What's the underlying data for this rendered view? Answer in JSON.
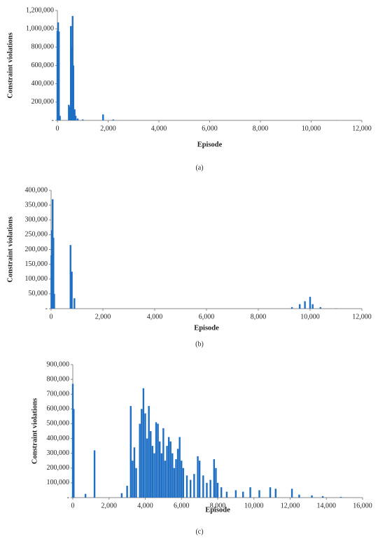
{
  "chart_data": [
    {
      "type": "bar",
      "panel_label": "(a)",
      "xlabel": "Episode",
      "ylabel": "Constraint violations",
      "color": "#1f6fc5",
      "x": [
        0,
        30,
        60,
        100,
        450,
        500,
        530,
        570,
        600,
        630,
        680,
        720,
        800,
        1000,
        1800,
        2200,
        11000
      ],
      "values": [
        980000,
        1070000,
        970000,
        50000,
        170000,
        150000,
        1030000,
        800000,
        1140000,
        600000,
        120000,
        50000,
        20000,
        10000,
        65000,
        10000,
        2000
      ],
      "xlim": [
        0,
        12000
      ],
      "ylim": [
        0,
        1200000
      ],
      "xticks": [
        0,
        {
          "value": 2000,
          "label": "2,000"
        },
        {
          "value": 4000,
          "label": "4,000"
        },
        {
          "value": 6000,
          "label": "6,000"
        },
        {
          "value": 8000,
          "label": "8,000"
        },
        {
          "value": 10000,
          "label": "10,000"
        },
        {
          "value": 12000,
          "label": "12,000"
        }
      ],
      "yticks": [
        {
          "value": 0,
          "label": "-"
        },
        {
          "value": 200000,
          "label": "200,000"
        },
        {
          "value": 400000,
          "label": "400,000"
        },
        {
          "value": 600000,
          "label": "600,000"
        },
        {
          "value": 800000,
          "label": "800,000"
        },
        {
          "value": 1000000,
          "label": "1,000,000"
        },
        {
          "value": 1200000,
          "label": "1,200,000"
        }
      ]
    },
    {
      "type": "bar",
      "panel_label": "(b)",
      "xlabel": "Episode",
      "ylabel": "Constraint violations",
      "color": "#1f6fc5",
      "x": [
        10,
        30,
        60,
        90,
        120,
        750,
        800,
        900,
        9300,
        9600,
        9800,
        10000,
        10100,
        10400,
        11000
      ],
      "values": [
        180000,
        265000,
        370000,
        240000,
        50000,
        215000,
        125000,
        35000,
        5000,
        15000,
        25000,
        40000,
        15000,
        5000,
        1000
      ],
      "xlim": [
        0,
        12000
      ],
      "ylim": [
        0,
        400000
      ],
      "xticks": [
        0,
        {
          "value": 2000,
          "label": "2,000"
        },
        {
          "value": 4000,
          "label": "4,000"
        },
        {
          "value": 6000,
          "label": "6,000"
        },
        {
          "value": 8000,
          "label": "8,000"
        },
        {
          "value": 10000,
          "label": "10,000"
        },
        {
          "value": 12000,
          "label": "12,000"
        }
      ],
      "yticks": [
        {
          "value": 0,
          "label": "-"
        },
        {
          "value": 50000,
          "label": "50,000"
        },
        {
          "value": 100000,
          "label": "100,000"
        },
        {
          "value": 150000,
          "label": "150,000"
        },
        {
          "value": 200000,
          "label": "200,000"
        },
        {
          "value": 250000,
          "label": "250,000"
        },
        {
          "value": 300000,
          "label": "300,000"
        },
        {
          "value": 350000,
          "label": "350,000"
        },
        {
          "value": 400000,
          "label": "400,000"
        }
      ]
    },
    {
      "type": "bar",
      "panel_label": "(c)",
      "xlabel": "Episode",
      "ylabel": "Constraint violations",
      "color": "#1f6fc5",
      "x": [
        0,
        50,
        700,
        1200,
        2700,
        3000,
        3200,
        3300,
        3400,
        3500,
        3700,
        3800,
        3900,
        4000,
        4100,
        4200,
        4300,
        4400,
        4500,
        4600,
        4700,
        4800,
        4900,
        5000,
        5100,
        5200,
        5300,
        5400,
        5500,
        5600,
        5700,
        5800,
        5900,
        6000,
        6100,
        6300,
        6500,
        6700,
        6900,
        7000,
        7200,
        7400,
        7600,
        7800,
        7900,
        8000,
        8200,
        8500,
        9000,
        9400,
        9800,
        10300,
        10900,
        11200,
        12100,
        12500,
        13200,
        13800,
        14800
      ],
      "values": [
        770000,
        600000,
        25000,
        320000,
        30000,
        80000,
        620000,
        250000,
        340000,
        200000,
        500000,
        600000,
        740000,
        570000,
        400000,
        620000,
        450000,
        350000,
        300000,
        510000,
        500000,
        380000,
        300000,
        470000,
        250000,
        350000,
        410000,
        380000,
        300000,
        200000,
        260000,
        330000,
        410000,
        250000,
        200000,
        150000,
        120000,
        160000,
        280000,
        250000,
        150000,
        100000,
        120000,
        260000,
        200000,
        100000,
        70000,
        40000,
        50000,
        40000,
        70000,
        50000,
        70000,
        60000,
        60000,
        20000,
        15000,
        10000,
        5000
      ],
      "xlim": [
        0,
        16000
      ],
      "ylim": [
        0,
        900000
      ],
      "xticks": [
        0,
        {
          "value": 2000,
          "label": "2,000"
        },
        {
          "value": 4000,
          "label": "4,000"
        },
        {
          "value": 6000,
          "label": "6,000"
        },
        {
          "value": 8000,
          "label": "8,000"
        },
        {
          "value": 10000,
          "label": "10,000"
        },
        {
          "value": 12000,
          "label": "12,000"
        },
        {
          "value": 14000,
          "label": "14,000"
        },
        {
          "value": 16000,
          "label": "16,000"
        }
      ],
      "yticks": [
        {
          "value": 0,
          "label": "-"
        },
        {
          "value": 100000,
          "label": "100,000"
        },
        {
          "value": 200000,
          "label": "200,000"
        },
        {
          "value": 300000,
          "label": "300,000"
        },
        {
          "value": 400000,
          "label": "400,000"
        },
        {
          "value": 500000,
          "label": "500,000"
        },
        {
          "value": 600000,
          "label": "600,000"
        },
        {
          "value": 700000,
          "label": "700,000"
        },
        {
          "value": 800000,
          "label": "800,000"
        },
        {
          "value": 900000,
          "label": "900,000"
        }
      ]
    }
  ]
}
